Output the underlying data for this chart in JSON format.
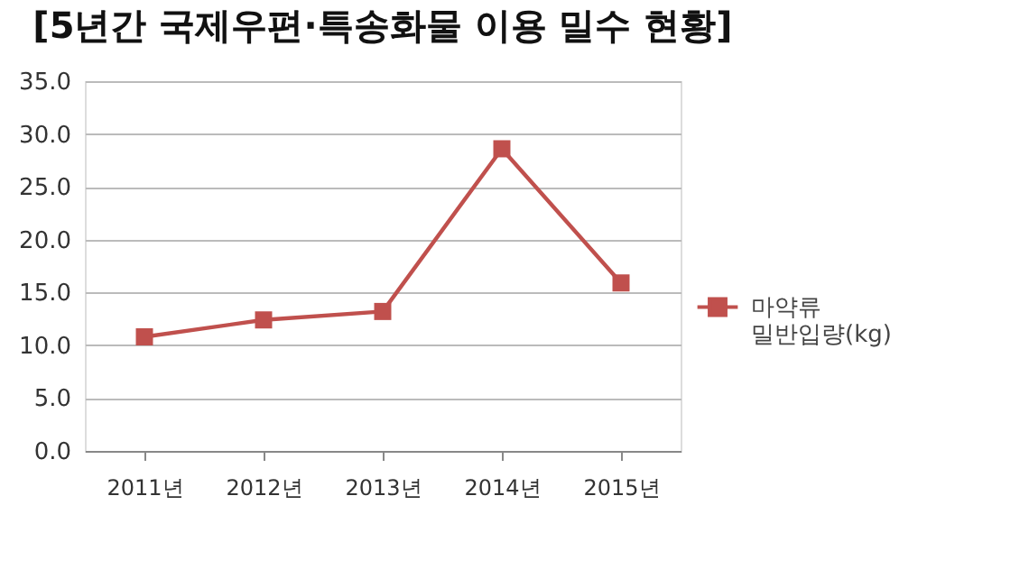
{
  "chart_data": {
    "type": "line",
    "title": "[5년간 국제우편·특송화물 이용 밀수 현황]",
    "categories": [
      "2011년",
      "2012년",
      "2013년",
      "2014년",
      "2015년"
    ],
    "series": [
      {
        "name": "마약류 밀반입량(kg)",
        "color": "#c0504d",
        "values": [
          10.8,
          12.4,
          13.2,
          28.6,
          15.9
        ]
      }
    ],
    "ylim": [
      0,
      35
    ],
    "yticks": [
      {
        "value": 0,
        "label": "0.0"
      },
      {
        "value": 5,
        "label": "5.0"
      },
      {
        "value": 10,
        "label": "10.0"
      },
      {
        "value": 15,
        "label": "15.0"
      },
      {
        "value": 20,
        "label": "20.0"
      },
      {
        "value": 25,
        "label": "25.0"
      },
      {
        "value": 30,
        "label": "30.0"
      },
      {
        "value": 35,
        "label": "35.0"
      }
    ],
    "grid": "y",
    "legend": "right",
    "marker": "square",
    "line_style": "solid"
  }
}
